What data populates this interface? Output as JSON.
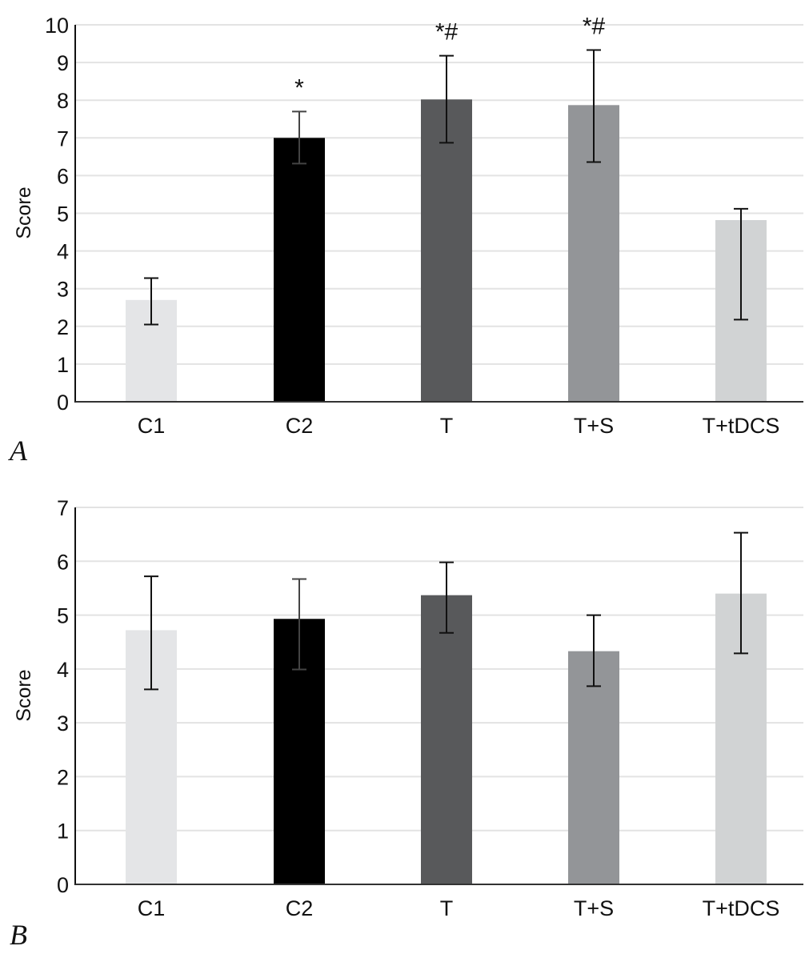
{
  "chart_data": [
    {
      "type": "bar",
      "panel_label": "A",
      "categories": [
        "C1",
        "C2",
        "T",
        "T+S",
        "T+tDCS"
      ],
      "values": [
        2.7,
        7.0,
        8.02,
        7.87,
        4.82
      ],
      "error_low": [
        2.05,
        6.32,
        6.87,
        6.36,
        2.18
      ],
      "error_high": [
        3.28,
        7.7,
        9.18,
        9.33,
        5.12
      ],
      "annotations": [
        "",
        "*",
        "*#",
        "*#",
        ""
      ],
      "colors": [
        "#e4e5e7",
        "#000000",
        "#58595b",
        "#939598",
        "#d1d3d4"
      ],
      "xlabel": "",
      "ylabel": "Score",
      "ylim": [
        0,
        10
      ],
      "yticks": [
        "0",
        "1",
        "2",
        "3",
        "4",
        "5",
        "6",
        "7",
        "8",
        "9",
        "10"
      ],
      "grid": true
    },
    {
      "type": "bar",
      "panel_label": "B",
      "categories": [
        "C1",
        "C2",
        "T",
        "T+S",
        "T+tDCS"
      ],
      "values": [
        4.72,
        4.93,
        5.37,
        4.33,
        5.4
      ],
      "error_low": [
        3.62,
        3.99,
        4.67,
        3.68,
        4.29
      ],
      "error_high": [
        5.72,
        5.67,
        5.98,
        5.0,
        6.53
      ],
      "annotations": [
        "",
        "",
        "",
        "",
        ""
      ],
      "colors": [
        "#e4e5e7",
        "#000000",
        "#58595b",
        "#939598",
        "#d1d3d4"
      ],
      "xlabel": "",
      "ylabel": "Score",
      "ylim": [
        0,
        7
      ],
      "yticks": [
        "0",
        "1",
        "2",
        "3",
        "4",
        "5",
        "6",
        "7"
      ],
      "grid": true
    }
  ]
}
